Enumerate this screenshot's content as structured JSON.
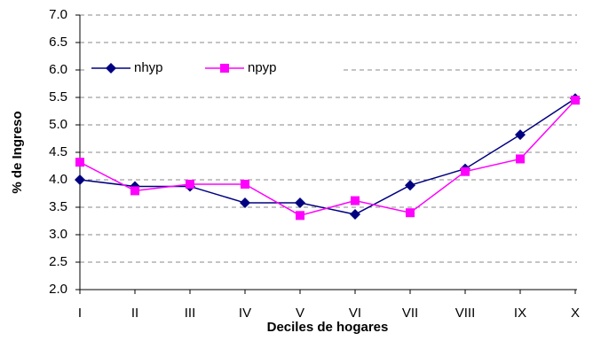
{
  "chart_data": {
    "type": "line",
    "categories": [
      "I",
      "II",
      "III",
      "IV",
      "V",
      "VI",
      "VII",
      "VIII",
      "IX",
      "X"
    ],
    "series": [
      {
        "name": "nhyp",
        "color": "#000080",
        "marker": "diamond",
        "values": [
          4.0,
          3.88,
          3.88,
          3.58,
          3.58,
          3.37,
          3.9,
          4.2,
          4.82,
          5.48
        ]
      },
      {
        "name": "npyp",
        "color": "#ff00ff",
        "marker": "square",
        "values": [
          4.32,
          3.8,
          3.92,
          3.92,
          3.35,
          3.62,
          3.4,
          4.15,
          4.38,
          5.45
        ]
      }
    ],
    "xlabel": "Deciles de hogares",
    "ylabel": "% de Ingreso",
    "ylim": [
      2,
      7
    ],
    "yticks": [
      {
        "value": 2,
        "label": "2.0"
      },
      2.5,
      {
        "value": 3,
        "label": "3.0"
      },
      3.5,
      {
        "value": 4,
        "label": "4.0"
      },
      4.5,
      {
        "value": 5,
        "label": "5.0"
      },
      5.5,
      {
        "value": 6,
        "label": "6.0"
      },
      6.5,
      {
        "value": 7,
        "label": "7.0"
      }
    ],
    "grid": true,
    "legend": "top-left"
  }
}
